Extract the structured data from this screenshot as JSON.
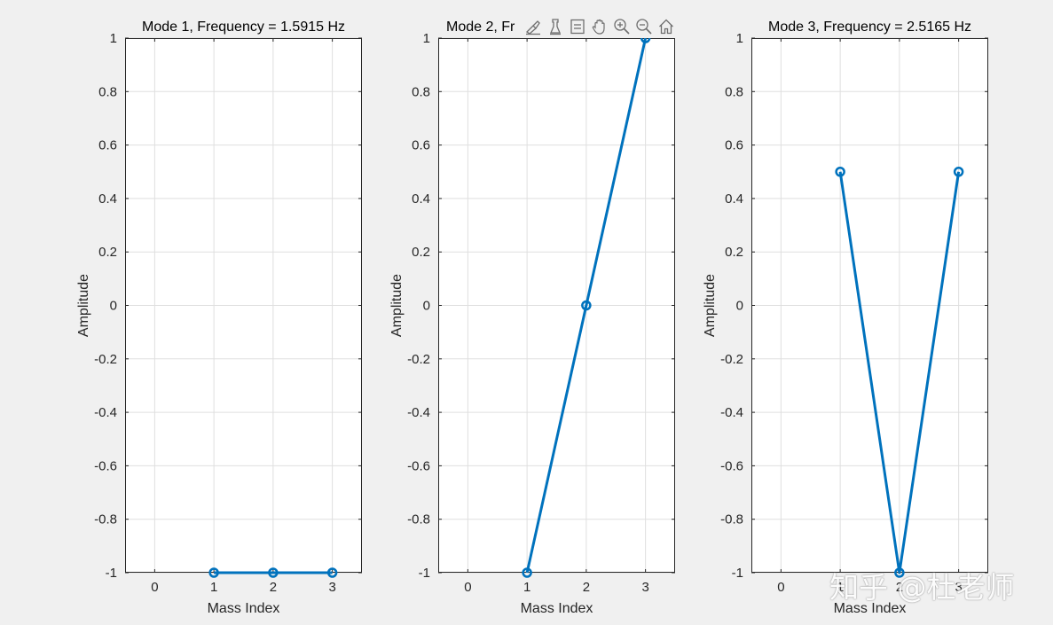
{
  "chart_data": [
    {
      "type": "line",
      "title": "Mode 1, Frequency = 1.5915 Hz",
      "xlabel": "Mass Index",
      "ylabel": "Amplitude",
      "xlim": [
        -0.5,
        3.5
      ],
      "ylim": [
        -1,
        1
      ],
      "xticks": [
        0,
        1,
        2,
        3
      ],
      "yticks": [
        -1,
        -0.8,
        -0.6,
        -0.4,
        -0.2,
        0,
        0.2,
        0.4,
        0.6,
        0.8,
        1
      ],
      "grid": true,
      "marker": "o",
      "x": [
        1,
        2,
        3
      ],
      "y": [
        -1,
        -1,
        -1
      ]
    },
    {
      "type": "line",
      "title": "Mode 2, Fr",
      "xlabel": "Mass Index",
      "ylabel": "Amplitude",
      "xlim": [
        -0.5,
        3.5
      ],
      "ylim": [
        -1,
        1
      ],
      "xticks": [
        0,
        1,
        2,
        3
      ],
      "yticks": [
        -1,
        -0.8,
        -0.6,
        -0.4,
        -0.2,
        0,
        0.2,
        0.4,
        0.6,
        0.8,
        1
      ],
      "grid": true,
      "marker": "o",
      "x": [
        1,
        2,
        3
      ],
      "y": [
        -1,
        0,
        1
      ]
    },
    {
      "type": "line",
      "title": "Mode 3, Frequency = 2.5165 Hz",
      "xlabel": "Mass Index",
      "ylabel": "Amplitude",
      "xlim": [
        -0.5,
        3.5
      ],
      "ylim": [
        -1,
        1
      ],
      "xticks": [
        0,
        1,
        2,
        3
      ],
      "yticks": [
        -1,
        -0.8,
        -0.6,
        -0.4,
        -0.2,
        0,
        0.2,
        0.4,
        0.6,
        0.8,
        1
      ],
      "grid": true,
      "marker": "o",
      "x": [
        1,
        2,
        3
      ],
      "y": [
        0.5,
        -1,
        0.5
      ]
    }
  ],
  "colors": {
    "line": "#0072bd",
    "grid": "#dfdfdf",
    "axis": "#262626",
    "plot_bg": "#ffffff",
    "figure_bg": "#f0f0f0"
  },
  "toolbar": {
    "buttons": [
      "brush-icon",
      "data-tips-icon",
      "legend-icon",
      "pan-icon",
      "zoom-in-icon",
      "zoom-out-icon",
      "home-icon"
    ]
  },
  "watermark": "知乎 @杜老师"
}
